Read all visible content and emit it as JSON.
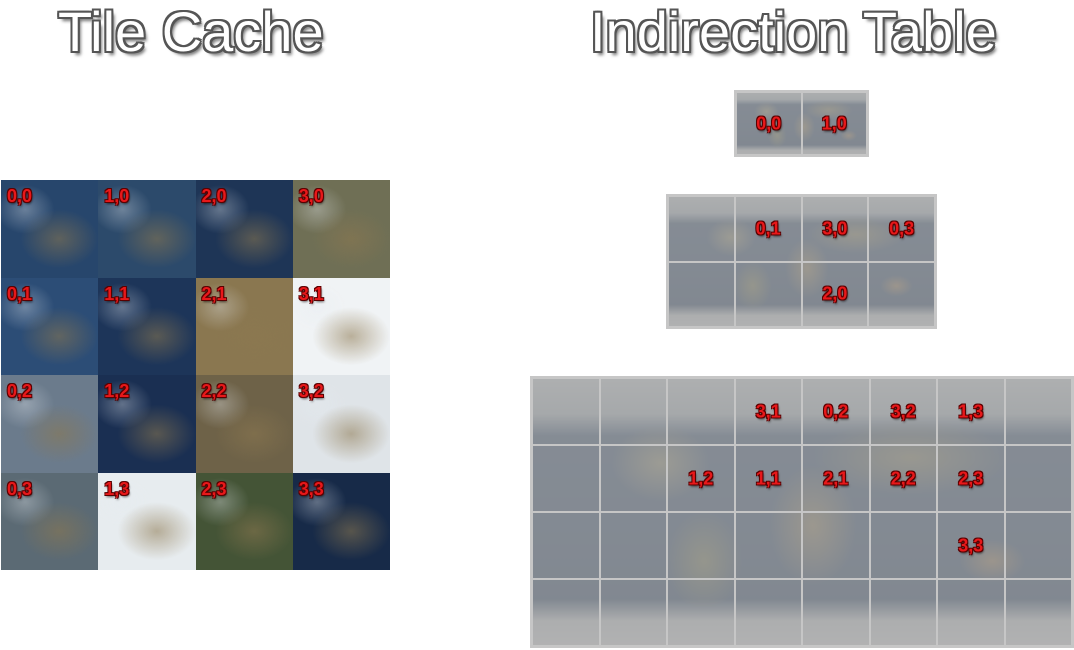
{
  "titles": {
    "left": "Tile Cache",
    "right": "Indirection Table"
  },
  "tile_cache": {
    "labels": [
      "0,0",
      "1,0",
      "2,0",
      "3,0",
      "0,1",
      "1,1",
      "2,1",
      "3,1",
      "0,2",
      "1,2",
      "2,2",
      "3,2",
      "0,3",
      "1,3",
      "2,3",
      "3,3"
    ],
    "tile_colors": [
      "#27466c",
      "#2c4a6b",
      "#1e3556",
      "#6f6f55",
      "#2c4d76",
      "#1d3559",
      "#8a7750",
      "#f0f3f5",
      "#6b7b8c",
      "#1a2f52",
      "#6e6248",
      "#dfe4e8",
      "#5b6a74",
      "#e7ecef",
      "#445436",
      "#172a48"
    ]
  },
  "indirection": {
    "level0": {
      "cols": 2,
      "rows": 1,
      "cells": [
        "0,0",
        "1,0"
      ]
    },
    "level1": {
      "cols": 4,
      "rows": 2,
      "cells": [
        "",
        "0,1",
        "3,0",
        "0,3",
        "",
        "",
        "2,0",
        ""
      ]
    },
    "level2": {
      "cols": 8,
      "rows": 4,
      "cells": [
        "",
        "",
        "",
        "3,1",
        "0,2",
        "3,2",
        "1,3",
        "",
        "",
        "",
        "1,2",
        "1,1",
        "2,1",
        "2,2",
        "2,3",
        "",
        "",
        "",
        "",
        "",
        "",
        "",
        "3,3",
        "",
        "",
        "",
        "",
        "",
        "",
        "",
        "",
        ""
      ]
    }
  }
}
